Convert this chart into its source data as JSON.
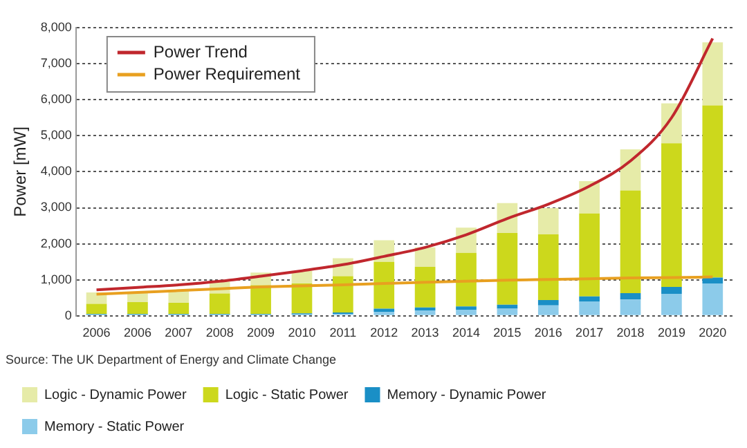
{
  "chart_data": {
    "type": "bar",
    "stacked": true,
    "ylabel": "Power [mW]",
    "categories": [
      "2006",
      "2006",
      "2007",
      "2008",
      "2009",
      "2010",
      "2011",
      "2012",
      "2013",
      "2014",
      "2015",
      "2016",
      "2017",
      "2018",
      "2019",
      "2020"
    ],
    "series": [
      {
        "name": "Memory - Static Power",
        "color": "#8ccbea",
        "values": [
          30,
          30,
          30,
          30,
          30,
          40,
          50,
          110,
          150,
          170,
          200,
          290,
          400,
          450,
          610,
          900
        ]
      },
      {
        "name": "Memory - Dynamic Power",
        "color": "#1a8fc6",
        "values": [
          20,
          20,
          20,
          20,
          20,
          30,
          40,
          90,
          80,
          90,
          110,
          150,
          140,
          180,
          190,
          160
        ]
      },
      {
        "name": "Logic - Static Power",
        "color": "#ccd81c",
        "values": [
          280,
          330,
          310,
          570,
          800,
          830,
          1010,
          1300,
          1130,
          1490,
          1990,
          1820,
          2300,
          2850,
          3990,
          4780
        ]
      },
      {
        "name": "Logic - Dynamic Power",
        "color": "#e6eba8",
        "values": [
          320,
          270,
          340,
          330,
          350,
          350,
          500,
          600,
          540,
          700,
          830,
          730,
          900,
          1140,
          1110,
          1750
        ]
      },
      {
        "name": "Power Trend",
        "type": "line",
        "color": "#c0272d",
        "values": [
          720,
          790,
          860,
          960,
          1100,
          1250,
          1420,
          1650,
          1900,
          2250,
          2700,
          3100,
          3600,
          4300,
          5500,
          7700
        ]
      },
      {
        "name": "Power Requirement",
        "type": "line",
        "color": "#e8a020",
        "values": [
          600,
          650,
          700,
          750,
          800,
          830,
          860,
          900,
          930,
          960,
          990,
          1010,
          1030,
          1050,
          1060,
          1080
        ]
      }
    ],
    "ylim": [
      0,
      8000
    ],
    "yticks": [
      0,
      {
        "value": 1000,
        "label": "1,000"
      },
      {
        "value": 2000,
        "label": "2,000"
      },
      {
        "value": 3000,
        "label": "3,000"
      },
      {
        "value": 4000,
        "label": "4,000"
      },
      {
        "value": 5000,
        "label": "5,000"
      },
      {
        "value": 6000,
        "label": "6,000"
      },
      {
        "value": 7000,
        "label": "7,000"
      },
      {
        "value": 8000,
        "label": "8,000"
      }
    ],
    "grid": "y",
    "legend": "bottom",
    "marker": "none",
    "annotations": [
      "Source: The UK Department of Energy and Climate Change"
    ]
  }
}
